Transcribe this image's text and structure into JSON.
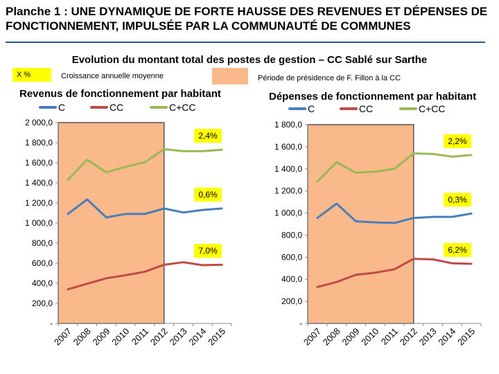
{
  "header": {
    "title": "Planche 1 : UNE DYNAMIQUE DE FORTE HAUSSE DES REVENUES ET DÉPENSES DE FONCTIONNEMENT, IMPULSÉE PAR LA COMMUNAUTÉ DE COMMUNES",
    "subtitle": "Evolution du montant total des postes de gestion – CC Sablé sur Sarthe"
  },
  "legend_notes": {
    "growth_box": "X %",
    "growth_label": "Croissance annuelle moyenne",
    "period_label": "Période de présidence de F. Fillon à la CC"
  },
  "colors": {
    "C": "#4a7ebb",
    "CC": "#be4b48",
    "C+CC": "#98b954",
    "highlight": "#f9b98a",
    "callout": "#ffff00"
  },
  "chart_data": [
    {
      "type": "line",
      "title": "Revenus de fonctionnement par habitant",
      "x": [
        "2007",
        "2008",
        "2009",
        "2010",
        "2011",
        "2012",
        "2013",
        "2014",
        "2015"
      ],
      "ylim": [
        0,
        2000
      ],
      "yticks": [
        "-",
        "200,0",
        "400,0",
        "600,0",
        "800,0",
        "1 000,0",
        "1 200,0",
        "1 400,0",
        "1 600,0",
        "1 800,0",
        "2 000,0"
      ],
      "highlight_period": [
        "2007",
        "2012"
      ],
      "series": [
        {
          "name": "C",
          "values": [
            1090,
            1235,
            1055,
            1090,
            1090,
            1145,
            1105,
            1130,
            1145
          ],
          "growth": "0,6%"
        },
        {
          "name": "CC",
          "values": [
            340,
            395,
            450,
            480,
            515,
            585,
            610,
            580,
            585
          ],
          "growth": "7,0%"
        },
        {
          "name": "C+CC",
          "values": [
            1430,
            1630,
            1505,
            1560,
            1605,
            1735,
            1715,
            1715,
            1730
          ],
          "growth": "2,4%"
        }
      ]
    },
    {
      "type": "line",
      "title": "Dépenses de fonctionnement par habitant",
      "x": [
        "2007",
        "2008",
        "2009",
        "2010",
        "2011",
        "2012",
        "2013",
        "2014",
        "2015"
      ],
      "ylim": [
        0,
        1800
      ],
      "yticks": [
        "-",
        "200,0",
        "400,0",
        "600,0",
        "800,0",
        "1 000,0",
        "1 200,0",
        "1 400,0",
        "1 600,0",
        "1 800,0"
      ],
      "highlight_period": [
        "2007",
        "2012"
      ],
      "series": [
        {
          "name": "C",
          "values": [
            955,
            1085,
            925,
            915,
            910,
            955,
            965,
            965,
            995
          ],
          "growth": "0,3%"
        },
        {
          "name": "CC",
          "values": [
            330,
            375,
            440,
            460,
            490,
            585,
            580,
            545,
            540
          ],
          "growth": "6,2%"
        },
        {
          "name": "C+CC",
          "values": [
            1285,
            1460,
            1365,
            1375,
            1400,
            1540,
            1535,
            1510,
            1525
          ],
          "growth": "2,2%"
        }
      ]
    }
  ]
}
